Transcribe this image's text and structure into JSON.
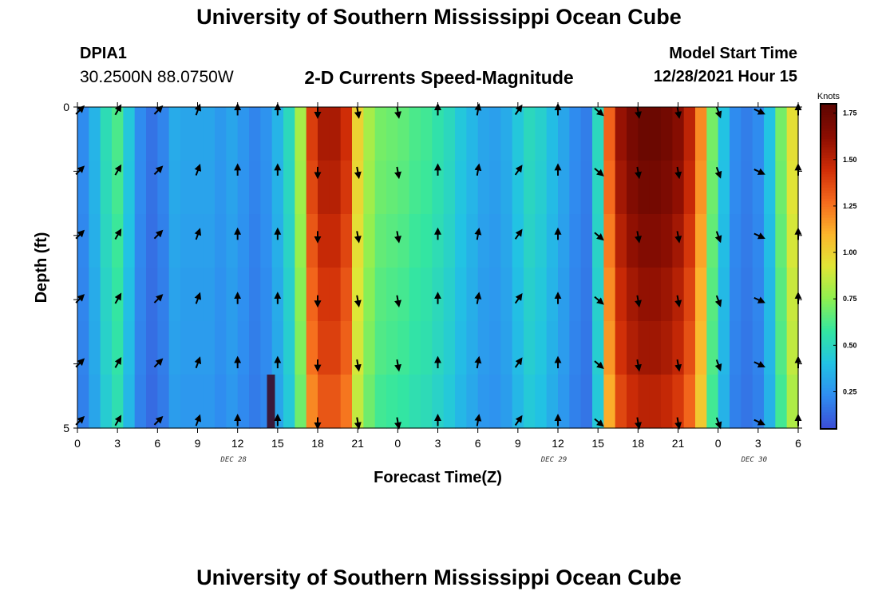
{
  "header": {
    "title": "University of Southern Mississippi Ocean Cube",
    "station": "DPIA1",
    "coordinates": "30.2500N  88.0750W",
    "subtitle": "2-D Currents Speed-Magnitude",
    "model_start_label": "Model Start Time",
    "model_start_value": "12/28/2021 Hour 15"
  },
  "footer": {
    "title": "University of Southern Mississippi Ocean Cube"
  },
  "chart_data": {
    "type": "heatmap",
    "title": "2-D Currents Speed-Magnitude",
    "xlabel": "Forecast Time(Z)",
    "ylabel": "Depth (ft)",
    "x_tick_labels": [
      "0",
      "3",
      "6",
      "9",
      "12",
      "15",
      "18",
      "21",
      "0",
      "3",
      "6",
      "9",
      "12",
      "15",
      "18",
      "21",
      "0",
      "3",
      "6"
    ],
    "date_labels": [
      {
        "text": "DEC 28",
        "at_tick": 4
      },
      {
        "text": "DEC 29",
        "at_tick": 12
      },
      {
        "text": "DEC 30",
        "at_tick": 17
      }
    ],
    "y_tick_labels": [
      {
        "text": "0",
        "depth": 0
      },
      {
        "text": "5",
        "depth": 5
      }
    ],
    "ylim": [
      0,
      5
    ],
    "colorbar": {
      "unit": "Knots",
      "ticks": [
        "1.75",
        "1.50",
        "1.25",
        "1.00",
        "0.75",
        "0.50",
        "0.25"
      ],
      "tick_values": [
        1.75,
        1.5,
        1.25,
        1.0,
        0.75,
        0.5,
        0.25
      ],
      "range": [
        0.05,
        1.8
      ],
      "colors": [
        "#3b4fd6",
        "#2f8ef0",
        "#22c3e3",
        "#34e6a0",
        "#8ff050",
        "#e0e636",
        "#fcb52c",
        "#f56a1d",
        "#cf2d07",
        "#8c0e02",
        "#5e0501"
      ]
    },
    "speed_profile_by_hour": [
      0.22,
      0.35,
      0.52,
      0.62,
      0.42,
      0.22,
      0.15,
      0.2,
      0.32,
      0.3,
      0.3,
      0.3,
      0.26,
      0.3,
      0.25,
      0.2,
      0.24,
      0.35,
      0.5,
      0.8,
      1.4,
      1.55,
      1.55,
      1.45,
      1.0,
      0.8,
      0.7,
      0.68,
      0.66,
      0.62,
      0.6,
      0.55,
      0.5,
      0.42,
      0.36,
      0.3,
      0.28,
      0.32,
      0.42,
      0.5,
      0.46,
      0.38,
      0.3,
      0.22,
      0.18,
      0.5,
      1.3,
      1.6,
      1.7,
      1.75,
      1.75,
      1.72,
      1.65,
      1.5,
      1.2,
      0.7,
      0.4,
      0.22,
      0.18,
      0.22,
      0.4,
      0.7,
      0.95
    ],
    "depth_scale": [
      1.0,
      0.98,
      0.95,
      0.92,
      0.9,
      0.86
    ],
    "bottom_anomaly": {
      "hour": 14.5,
      "value": 0.0,
      "color": "#3a1a3a"
    },
    "arrow_rows_depth": [
      0,
      1,
      2,
      3,
      4,
      5
    ],
    "arrow_columns": [
      {
        "hour": 0,
        "angle": 45
      },
      {
        "hour": 3,
        "angle": 30
      },
      {
        "hour": 6,
        "angle": 45
      },
      {
        "hour": 9,
        "angle": 20
      },
      {
        "hour": 12,
        "angle": 0
      },
      {
        "hour": 15,
        "angle": 0
      },
      {
        "hour": 18,
        "angle": 180
      },
      {
        "hour": 21,
        "angle": 170
      },
      {
        "hour": 24,
        "angle": 170
      },
      {
        "hour": 27,
        "angle": 0
      },
      {
        "hour": 30,
        "angle": 10
      },
      {
        "hour": 33,
        "angle": 35
      },
      {
        "hour": 36,
        "angle": 0
      },
      {
        "hour": 39,
        "angle": 130
      },
      {
        "hour": 42,
        "angle": 170
      },
      {
        "hour": 45,
        "angle": 170
      },
      {
        "hour": 48,
        "angle": 160
      },
      {
        "hour": 51,
        "angle": 115
      },
      {
        "hour": 54,
        "angle": 0
      }
    ]
  }
}
